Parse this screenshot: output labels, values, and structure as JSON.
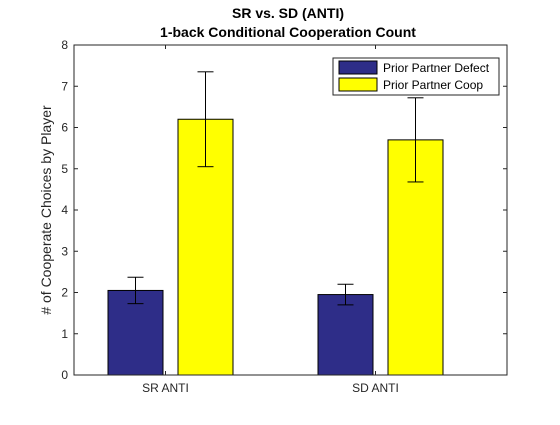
{
  "chart_data": {
    "type": "bar",
    "title": "SR vs. SD (ANTI)",
    "subtitle": "1-back Conditional Cooperation Count",
    "xlabel": "",
    "ylabel": "# of Cooperate Choices by Player",
    "categories": [
      "SR ANTI",
      "SD ANTI"
    ],
    "ylim": [
      0,
      8
    ],
    "yticks": [
      0,
      1,
      2,
      3,
      4,
      5,
      6,
      7,
      8
    ],
    "series": [
      {
        "name": "Prior Partner Defect",
        "color": "#2e2d88",
        "values": [
          2.05,
          1.95
        ],
        "error": [
          0.32,
          0.25
        ]
      },
      {
        "name": "Prior Partner Coop",
        "color": "#ffff00",
        "values": [
          6.2,
          5.7
        ],
        "error": [
          1.15,
          1.02
        ]
      }
    ],
    "grid": false,
    "legend_position": "top-right",
    "error_bar_color": "#000000",
    "axis_color": "#262626"
  }
}
